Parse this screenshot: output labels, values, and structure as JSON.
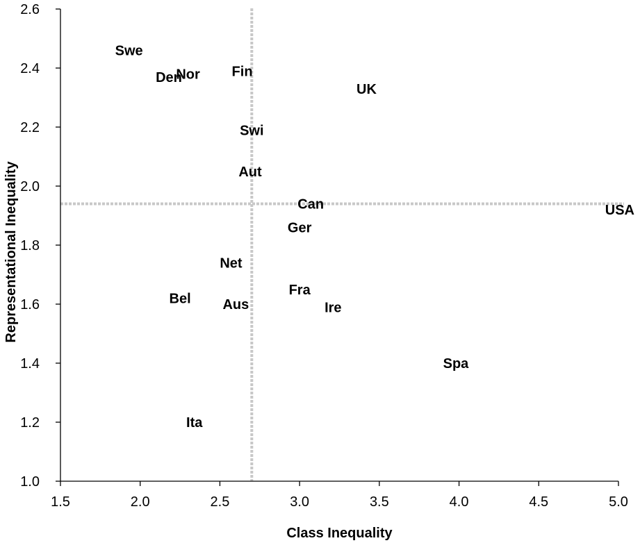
{
  "chart_data": {
    "type": "scatter",
    "title": "",
    "xlabel": "Class Inequality",
    "ylabel": "Representational Inequality",
    "xlim": [
      1.5,
      5.0
    ],
    "ylim": [
      1.0,
      2.6
    ],
    "xticks": [
      1.5,
      2.0,
      2.5,
      3.0,
      3.5,
      4.0,
      4.5,
      5.0
    ],
    "xtick_labels": [
      "1.5",
      "2.0",
      "2.5",
      "3.0",
      "3.5",
      "4.0",
      "4.5",
      "5.0"
    ],
    "yticks": [
      1.0,
      1.2,
      1.4,
      1.6,
      1.8,
      2.0,
      2.2,
      2.4,
      2.6
    ],
    "ytick_labels": [
      "1.0",
      "1.2",
      "1.4",
      "1.6",
      "1.8",
      "2.0",
      "2.2",
      "2.4",
      "2.6"
    ],
    "reference_lines": {
      "x": 2.7,
      "y": 1.94
    },
    "grid": false,
    "points": [
      {
        "label": "Swe",
        "x": 1.93,
        "y": 2.46
      },
      {
        "label": "Den",
        "x": 2.18,
        "y": 2.37
      },
      {
        "label": "Nor",
        "x": 2.3,
        "y": 2.38
      },
      {
        "label": "Fin",
        "x": 2.64,
        "y": 2.39
      },
      {
        "label": "UK",
        "x": 3.42,
        "y": 2.33
      },
      {
        "label": "Swi",
        "x": 2.7,
        "y": 2.19
      },
      {
        "label": "Aut",
        "x": 2.69,
        "y": 2.05
      },
      {
        "label": "Can",
        "x": 3.07,
        "y": 1.94
      },
      {
        "label": "USA",
        "x": 5.0,
        "y": 1.92
      },
      {
        "label": "Ger",
        "x": 3.0,
        "y": 1.86
      },
      {
        "label": "Net",
        "x": 2.57,
        "y": 1.74
      },
      {
        "label": "Fra",
        "x": 3.0,
        "y": 1.65
      },
      {
        "label": "Bel",
        "x": 2.25,
        "y": 1.62
      },
      {
        "label": "Aus",
        "x": 2.6,
        "y": 1.6
      },
      {
        "label": "Ire",
        "x": 3.21,
        "y": 1.59
      },
      {
        "label": "Spa",
        "x": 3.98,
        "y": 1.4
      },
      {
        "label": "Ita",
        "x": 2.34,
        "y": 1.2
      }
    ]
  }
}
